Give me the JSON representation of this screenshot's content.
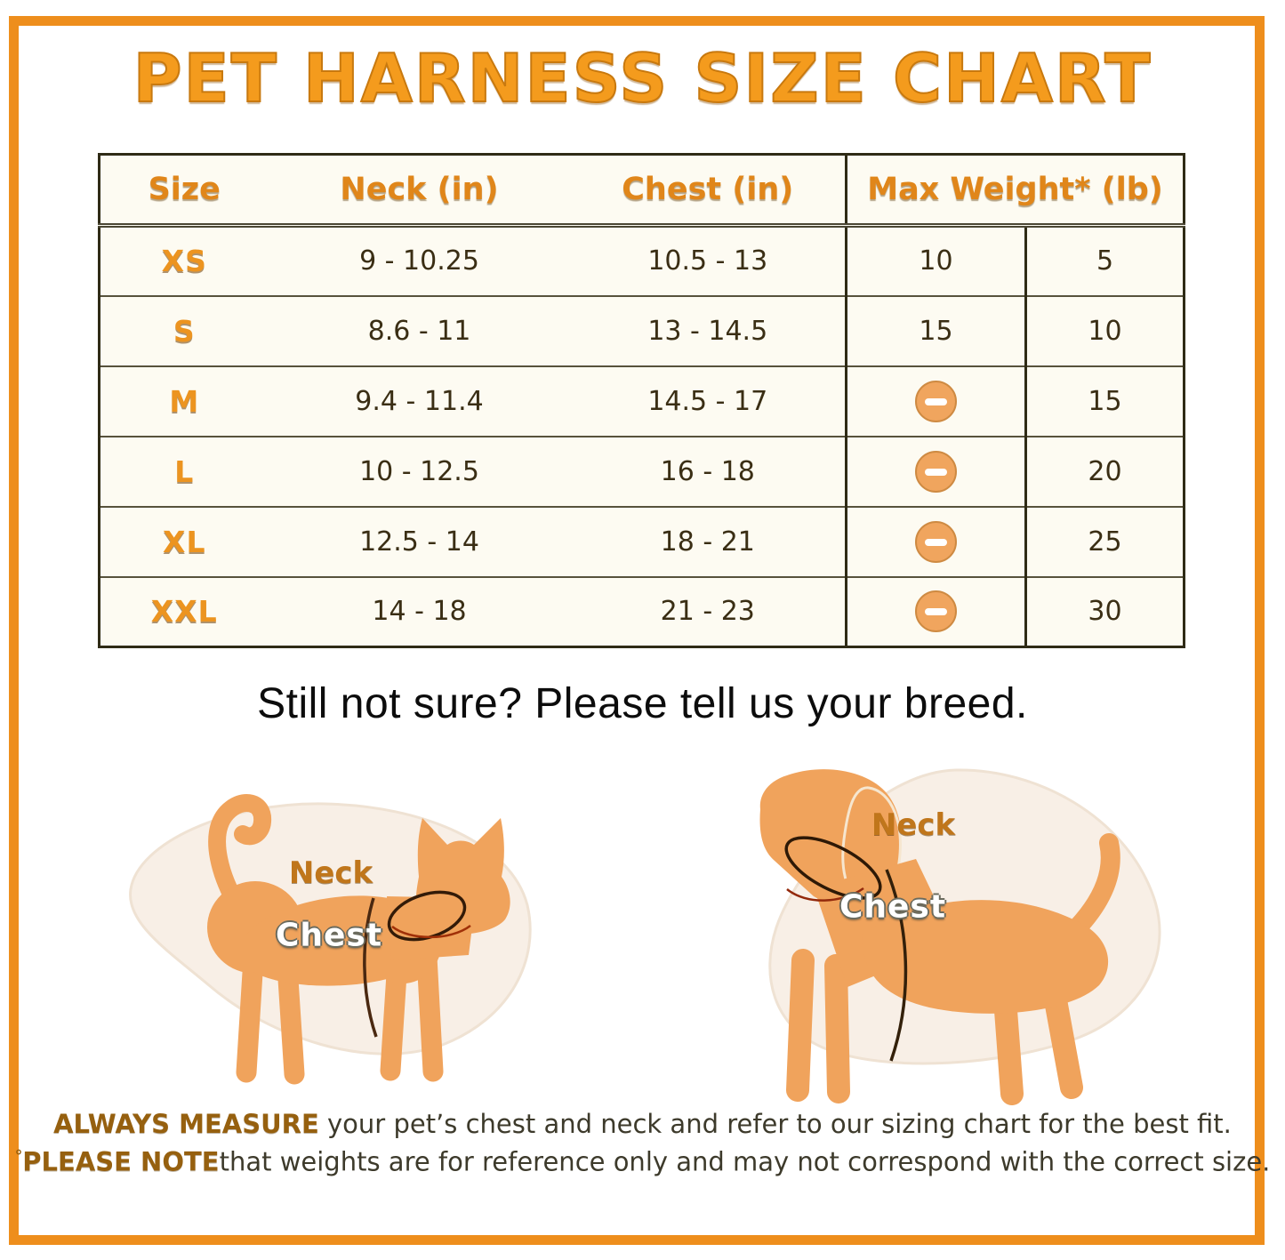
{
  "title": "PET HARNESS SIZE CHART",
  "table": {
    "headers": {
      "size": "Size",
      "neck": "Neck (in)",
      "chest": "Chest (in)",
      "max_weight": "Max Weight* (lb)"
    },
    "icons": {
      "weight_na": "minus-circle-icon"
    },
    "rows": [
      {
        "size": "XS",
        "neck": "9 - 10.25",
        "chest": "10.5 - 13",
        "weight_a": "10",
        "weight_b": "5"
      },
      {
        "size": "S",
        "neck": "8.6 - 11",
        "chest": "13 - 14.5",
        "weight_a": "15",
        "weight_b": "10"
      },
      {
        "size": "M",
        "neck": "9.4 - 11.4",
        "chest": "14.5 - 17",
        "weight_a": null,
        "weight_b": "15"
      },
      {
        "size": "L",
        "neck": "10 - 12.5",
        "chest": "16 - 18",
        "weight_a": null,
        "weight_b": "20"
      },
      {
        "size": "XL",
        "neck": "12.5 - 14",
        "chest": "18 - 21",
        "weight_a": null,
        "weight_b": "25"
      },
      {
        "size": "XXL",
        "neck": "14 - 18",
        "chest": "21 - 23",
        "weight_a": null,
        "weight_b": "30"
      }
    ]
  },
  "subtitle": "Still not sure? Please tell us your breed.",
  "diagrams": {
    "cat": {
      "neck_label": "Neck",
      "chest_label": "Chest"
    },
    "dog": {
      "neck_label": "Neck",
      "chest_label": "Chest"
    }
  },
  "footer": {
    "line1_bold": "ALWAYS MEASURE",
    "line1_rest": " your pet’s chest and neck and refer to our sizing chart for the best fit.",
    "line2_marker": "°",
    "line2_bold": "PLEASE NOTE",
    "line2_rest": "that weights are for reference only and may not correspond with the correct size."
  },
  "colors": {
    "frame_orange": "#EE8E1C",
    "title_orange": "#F49B1D",
    "header_orange": "#E0861A",
    "animal_orange": "#F0A35C",
    "blob_cream": "#F8EFE6",
    "table_bg": "#FDFBF2",
    "text_dark": "#3A2E14",
    "na_icon_fill": "#F0A55E"
  }
}
